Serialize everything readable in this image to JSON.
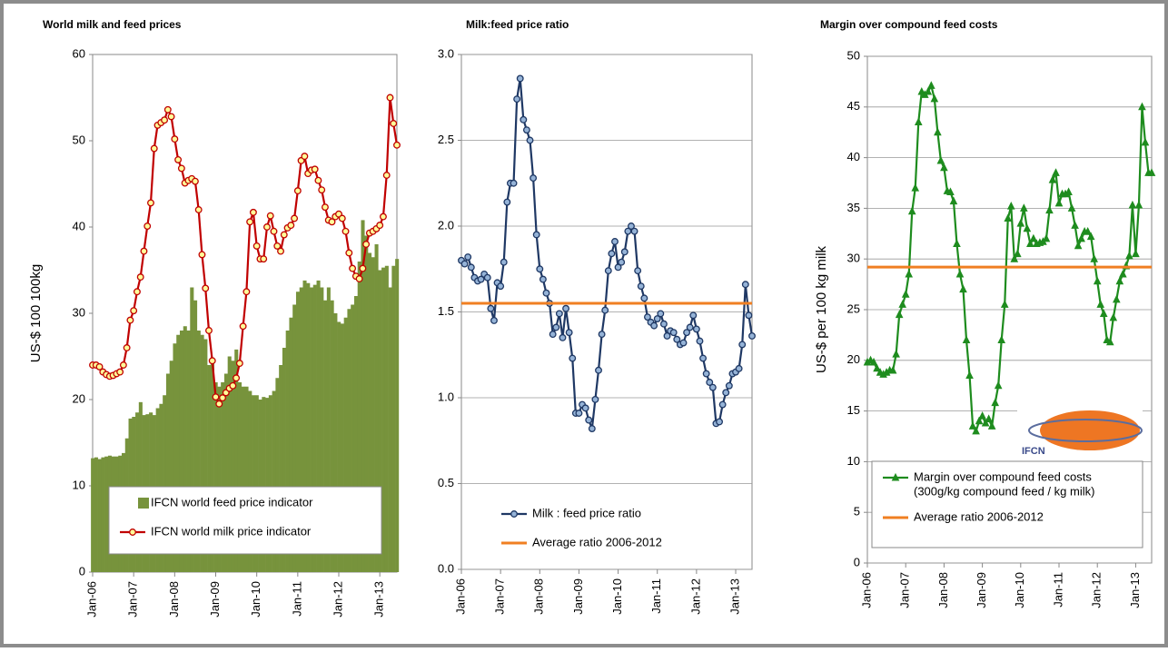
{
  "chart_data": [
    {
      "type": "combo",
      "title": "World milk and feed prices",
      "y_label": "US-$ 100 100kg",
      "categories": [
        "Jan-06",
        null,
        null,
        null,
        null,
        null,
        null,
        null,
        null,
        null,
        null,
        null,
        "Jan-07",
        null,
        null,
        null,
        null,
        null,
        null,
        null,
        null,
        null,
        null,
        null,
        "Jan-08",
        null,
        null,
        null,
        null,
        null,
        null,
        null,
        null,
        null,
        null,
        null,
        "Jan-09",
        null,
        null,
        null,
        null,
        null,
        null,
        null,
        null,
        null,
        null,
        null,
        "Jan-10",
        null,
        null,
        null,
        null,
        null,
        null,
        null,
        null,
        null,
        null,
        null,
        "Jan-11",
        null,
        null,
        null,
        null,
        null,
        null,
        null,
        null,
        null,
        null,
        null,
        "Jan-12",
        null,
        null,
        null,
        null,
        null,
        null,
        null,
        null,
        null,
        null,
        null,
        "Jan-13",
        null,
        null,
        null,
        null,
        null
      ],
      "ylim": [
        0,
        60
      ],
      "yticks": [
        0,
        10,
        20,
        30,
        40,
        50,
        60
      ],
      "grid": false,
      "series": [
        {
          "name": "IFCN world feed price indicator",
          "mark": "bar",
          "color": "#77933c",
          "values": [
            13.2,
            13.3,
            13.1,
            13.3,
            13.4,
            13.5,
            13.4,
            13.4,
            13.5,
            13.8,
            15.5,
            17.8,
            18,
            18.5,
            19.7,
            18.2,
            18.3,
            18.5,
            18.2,
            19,
            19.5,
            20.5,
            23,
            24.5,
            26.5,
            27.5,
            28,
            28.5,
            28,
            33,
            31.5,
            28,
            27.5,
            27,
            24,
            24.5,
            22,
            21.5,
            22,
            23,
            25,
            24.5,
            25.8,
            22,
            21.5,
            21.5,
            21,
            20.5,
            20.5,
            20,
            20.3,
            20.2,
            20.5,
            21,
            22.5,
            24,
            26,
            28,
            29.5,
            31,
            32.5,
            33,
            33.8,
            33.5,
            33,
            33.3,
            33.8,
            33,
            31.5,
            33,
            31.5,
            30,
            29,
            28.8,
            29.5,
            30.5,
            31,
            32,
            36,
            40.8,
            39,
            37,
            36.5,
            38,
            35,
            35.3,
            35.5,
            33,
            35.5,
            36.3
          ]
        },
        {
          "name": "IFCN world milk price indicator",
          "mark": "circle",
          "color": "#c00000",
          "marker_fill": "#ffff99",
          "values": [
            24,
            24,
            23.8,
            23.2,
            22.9,
            22.7,
            22.8,
            23,
            23.2,
            24,
            26,
            29.2,
            30.3,
            32.5,
            34.2,
            37.2,
            40.1,
            42.8,
            49.1,
            51.8,
            52.1,
            52.4,
            53.6,
            52.8,
            50.2,
            47.8,
            46.8,
            45.1,
            45.4,
            45.6,
            45.3,
            42,
            36.8,
            32.9,
            28,
            24.5,
            20.3,
            19.5,
            20.2,
            20.8,
            21.3,
            21.6,
            22.5,
            24.2,
            28.5,
            32.5,
            40.6,
            41.7,
            37.8,
            36.3,
            36.3,
            40,
            41.3,
            39.5,
            37.8,
            37.2,
            39.1,
            39.9,
            40.2,
            41,
            44.2,
            47.7,
            48.2,
            46.2,
            46.6,
            46.7,
            45.4,
            44.3,
            42.3,
            40.8,
            40.6,
            41.2,
            41.5,
            41,
            39.5,
            37,
            35.2,
            34.3,
            34,
            35.2,
            38,
            39.3,
            39.5,
            39.8,
            40.2,
            41.2,
            46,
            55,
            52,
            49.5
          ]
        }
      ],
      "reference_lines": []
    },
    {
      "type": "line",
      "title": "Milk:feed price ratio",
      "categories": [
        "Jan-06",
        null,
        null,
        null,
        null,
        null,
        null,
        null,
        null,
        null,
        null,
        null,
        "Jan-07",
        null,
        null,
        null,
        null,
        null,
        null,
        null,
        null,
        null,
        null,
        null,
        "Jan-08",
        null,
        null,
        null,
        null,
        null,
        null,
        null,
        null,
        null,
        null,
        null,
        "Jan-09",
        null,
        null,
        null,
        null,
        null,
        null,
        null,
        null,
        null,
        null,
        null,
        "Jan-10",
        null,
        null,
        null,
        null,
        null,
        null,
        null,
        null,
        null,
        null,
        null,
        "Jan-11",
        null,
        null,
        null,
        null,
        null,
        null,
        null,
        null,
        null,
        null,
        null,
        "Jan-12",
        null,
        null,
        null,
        null,
        null,
        null,
        null,
        null,
        null,
        null,
        null,
        "Jan-13",
        null,
        null,
        null,
        null,
        null
      ],
      "ylim": [
        0,
        3
      ],
      "yticks": [
        {
          "value": 0,
          "label": "0.0"
        },
        {
          "value": 0.5,
          "label": "0.5"
        },
        {
          "value": 1,
          "label": "1.0"
        },
        {
          "value": 1.5,
          "label": "1.5"
        },
        {
          "value": 2,
          "label": "2.0"
        },
        {
          "value": 2.5,
          "label": "2.5"
        },
        {
          "value": 3,
          "label": "3.0"
        }
      ],
      "grid": true,
      "series": [
        {
          "name": "Milk : feed price ratio",
          "mark": "circle",
          "color": "#1f3864",
          "marker_fill": "#95b3d7",
          "values": [
            1.8,
            1.78,
            1.82,
            1.76,
            1.7,
            1.68,
            1.69,
            1.72,
            1.7,
            1.52,
            1.45,
            1.67,
            1.65,
            1.79,
            2.14,
            2.25,
            2.25,
            2.74,
            2.86,
            2.62,
            2.56,
            2.5,
            2.28,
            1.95,
            1.75,
            1.69,
            1.61,
            1.55,
            1.37,
            1.41,
            1.49,
            1.35,
            1.52,
            1.38,
            1.23,
            0.91,
            0.91,
            0.96,
            0.94,
            0.87,
            0.82,
            0.99,
            1.16,
            1.37,
            1.51,
            1.74,
            1.84,
            1.91,
            1.76,
            1.79,
            1.85,
            1.97,
            2,
            1.97,
            1.74,
            1.65,
            1.58,
            1.47,
            1.44,
            1.42,
            1.46,
            1.49,
            1.43,
            1.36,
            1.39,
            1.38,
            1.34,
            1.31,
            1.32,
            1.38,
            1.41,
            1.48,
            1.4,
            1.33,
            1.23,
            1.14,
            1.09,
            1.06,
            0.85,
            0.86,
            0.96,
            1.03,
            1.07,
            1.14,
            1.15,
            1.17,
            1.31,
            1.66,
            1.48,
            1.36
          ]
        }
      ],
      "reference_lines": [
        {
          "name": "Average ratio 2006-2012",
          "value": 1.55,
          "color": "#f07f22"
        }
      ]
    },
    {
      "type": "line",
      "title": "Margin over compound feed costs",
      "y_label": "US-$ per 100 kg milk",
      "logo_text": "IFCN",
      "categories": [
        "Jan-06",
        null,
        null,
        null,
        null,
        null,
        null,
        null,
        null,
        null,
        null,
        null,
        "Jan-07",
        null,
        null,
        null,
        null,
        null,
        null,
        null,
        null,
        null,
        null,
        null,
        "Jan-08",
        null,
        null,
        null,
        null,
        null,
        null,
        null,
        null,
        null,
        null,
        null,
        "Jan-09",
        null,
        null,
        null,
        null,
        null,
        null,
        null,
        null,
        null,
        null,
        null,
        "Jan-10",
        null,
        null,
        null,
        null,
        null,
        null,
        null,
        null,
        null,
        null,
        null,
        "Jan-11",
        null,
        null,
        null,
        null,
        null,
        null,
        null,
        null,
        null,
        null,
        null,
        "Jan-12",
        null,
        null,
        null,
        null,
        null,
        null,
        null,
        null,
        null,
        null,
        null,
        "Jan-13",
        null,
        null,
        null,
        null,
        null
      ],
      "ylim": [
        0,
        50
      ],
      "yticks": [
        0,
        5,
        10,
        15,
        20,
        25,
        30,
        35,
        40,
        45,
        50
      ],
      "grid": true,
      "series": [
        {
          "name": [
            "Margin over compound feed costs",
            "(300g/kg compound feed / kg milk)"
          ],
          "mark": "triangle",
          "color": "#1e8c1e",
          "marker_fill": "#1e8c1e",
          "values": [
            19.8,
            20,
            19.8,
            19.2,
            18.8,
            18.6,
            18.8,
            19,
            19,
            20.6,
            24.5,
            25.5,
            26.5,
            28.5,
            34.7,
            37,
            43.5,
            46.5,
            46.2,
            46.5,
            47.1,
            45.8,
            42.5,
            39.7,
            39,
            36.7,
            36.6,
            35.7,
            31.5,
            28.5,
            27,
            22,
            18.5,
            13.5,
            13,
            14,
            14.5,
            13.8,
            14.2,
            13.5,
            15.8,
            17.5,
            22,
            25.5,
            34,
            35.2,
            30,
            30.5,
            33.5,
            35,
            33,
            31.5,
            32,
            31.5,
            31.6,
            31.7,
            32,
            34.8,
            37.8,
            38.5,
            35.5,
            36.4,
            36.4,
            36.6,
            35,
            33.3,
            31.3,
            32,
            32.7,
            32.7,
            32.2,
            30,
            27.8,
            25.5,
            24.6,
            22,
            21.8,
            24.2,
            26,
            27.8,
            28.5,
            29.3,
            30.3,
            35.3,
            30.5,
            35.3,
            45,
            41.5,
            38.5,
            38.5
          ]
        }
      ],
      "reference_lines": [
        {
          "name": "Average ratio 2006-2012",
          "value": 29.2,
          "color": "#f07f22"
        }
      ]
    }
  ]
}
